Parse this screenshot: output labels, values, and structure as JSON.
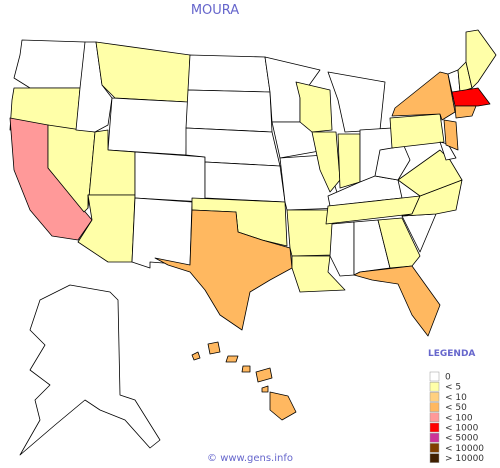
{
  "title": "MOURA",
  "legend": {
    "title": "LEGENDA",
    "items": [
      {
        "label": "0",
        "color": "#ffffff"
      },
      {
        "label": "< 5",
        "color": "#ffffa8"
      },
      {
        "label": "< 10",
        "color": "#ffd080"
      },
      {
        "label": "< 50",
        "color": "#ffb860"
      },
      {
        "label": "< 100",
        "color": "#ff9999"
      },
      {
        "label": "< 1000",
        "color": "#ff0000"
      },
      {
        "label": "< 5000",
        "color": "#cc3399"
      },
      {
        "label": "< 10000",
        "color": "#804000"
      },
      {
        "label": "> 10000",
        "color": "#402000"
      }
    ]
  },
  "footer": "© www.gens.info"
}
